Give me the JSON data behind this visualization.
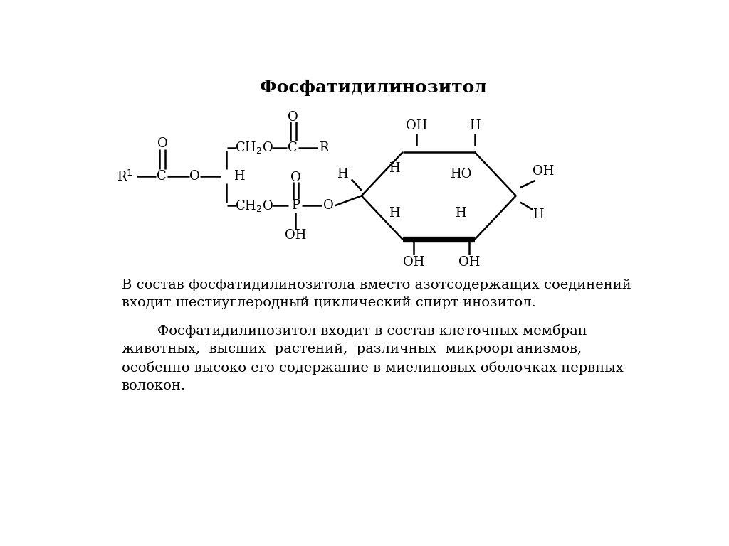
{
  "title": "Фосфатидилинозитол",
  "title_fontsize": 18,
  "bg_color": "#ffffff",
  "text_color": "#000000",
  "paragraph1": "В состав фосфатидилинозитола вместо азотсодержащих соединений\nвходит шестиуглеродный циклический спирт инозитол.",
  "paragraph2": "        Фосфатидилинозитол входит в состав клеточных мембран\nживотных,  высших  растений,  различных  микроорганизмов,\nособенно высоко его содержание в миелиновых оболочках нервных\nволокон.",
  "text_fontsize": 14,
  "chem_fontsize": 13
}
